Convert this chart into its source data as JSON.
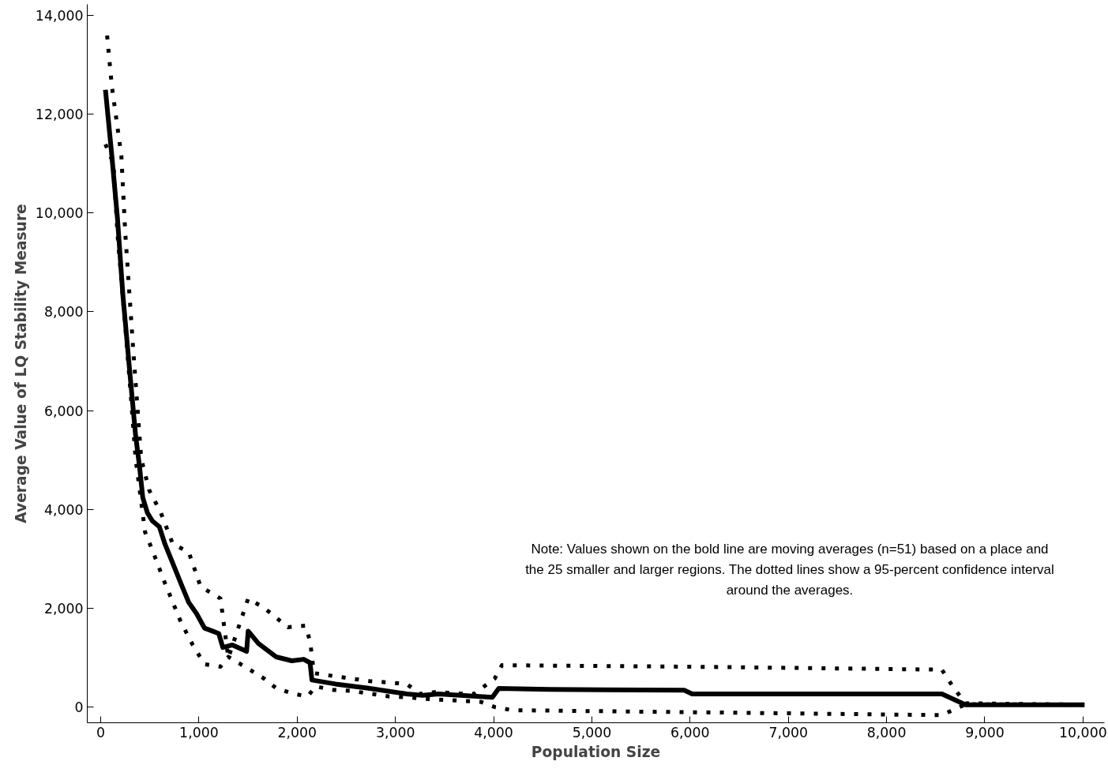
{
  "chart_data": {
    "type": "line",
    "xlabel": "Population Size",
    "ylabel": "Average Value of LQ Stability Measure",
    "annotations": [
      "Note: Values shown on the bold line are moving averages (n=51) based on a place and the 25 smaller and larger regions. The dotted lines show a 95-percent confidence interval around the averages."
    ],
    "xlim": [
      -137,
      10218
    ],
    "ylim": [
      -314,
      14220
    ],
    "xticks": [
      {
        "value": 0,
        "label": "0"
      },
      {
        "value": 1000,
        "label": "1,000"
      },
      {
        "value": 2000,
        "label": "2,000"
      },
      {
        "value": 3000,
        "label": "3,000"
      },
      {
        "value": 4000,
        "label": "4,000"
      },
      {
        "value": 5000,
        "label": "5,000"
      },
      {
        "value": 6000,
        "label": "6,000"
      },
      {
        "value": 7000,
        "label": "7,000"
      },
      {
        "value": 8000,
        "label": "8,000"
      },
      {
        "value": 9000,
        "label": "9,000"
      },
      {
        "value": 10000,
        "label": "10,000"
      }
    ],
    "yticks": [
      {
        "value": 0,
        "label": "0"
      },
      {
        "value": 2000,
        "label": "2,000"
      },
      {
        "value": 4000,
        "label": "4,000"
      },
      {
        "value": 6000,
        "label": "6,000"
      },
      {
        "value": 8000,
        "label": "8,000"
      },
      {
        "value": 10000,
        "label": "10,000"
      },
      {
        "value": 12000,
        "label": "12,000"
      },
      {
        "value": 14000,
        "label": "14,000"
      }
    ],
    "grid": false,
    "series": [
      {
        "color": "#000000",
        "line_style": "solid",
        "x": [
          48,
          113,
          170,
          226,
          290,
          355,
          395,
          428,
          476,
          525,
          597,
          654,
          734,
          815,
          896,
          977,
          1057,
          1138,
          1202,
          1243,
          1340,
          1485,
          1501,
          1606,
          1784,
          1945,
          2066,
          2131,
          2150,
          2389,
          2712,
          3115,
          3277,
          3438,
          3987,
          4052,
          4568,
          5940,
          6021,
          8563,
          8805,
          10016
        ],
        "values": [
          12490,
          11160,
          9900,
          8330,
          6910,
          5500,
          4870,
          4240,
          3930,
          3770,
          3650,
          3300,
          2910,
          2510,
          2120,
          1890,
          1600,
          1540,
          1490,
          1210,
          1260,
          1130,
          1540,
          1290,
          1020,
          940,
          970,
          900,
          550,
          470,
          390,
          270,
          240,
          270,
          200,
          380,
          360,
          345,
          270,
          270,
          50,
          50
        ]
      },
      {
        "color": "#000000",
        "line_style": "dotted",
        "x": [
          65,
          113,
          210,
          250,
          331,
          412,
          492,
          613,
          734,
          896,
          1017,
          1219,
          1299,
          1501,
          1663,
          1905,
          2082,
          2131,
          2171,
          2373,
          2550,
          2736,
          2930,
          3115,
          3253,
          3422,
          3616,
          3801,
          4011,
          4084,
          6000,
          8563,
          8684,
          8805,
          10016
        ],
        "values": [
          13590,
          12570,
          11160,
          9590,
          7230,
          5030,
          4400,
          3930,
          3300,
          3140,
          2440,
          2200,
          1000,
          2200,
          2010,
          1620,
          1650,
          1340,
          690,
          630,
          580,
          530,
          500,
          470,
          270,
          310,
          280,
          270,
          580,
          850,
          820,
          760,
          390,
          80,
          50
        ]
      },
      {
        "color": "#000000",
        "line_style": "dotted",
        "x": [
          48,
          129,
          170,
          250,
          307,
          355,
          452,
          533,
          654,
          815,
          937,
          1057,
          1219,
          1299,
          1525,
          1663,
          1784,
          1961,
          2107,
          2187,
          2373,
          2550,
          2930,
          3131,
          3301,
          3680,
          3866,
          4019,
          4189,
          6000,
          8563,
          8684,
          8805,
          10016
        ],
        "values": [
          11390,
          11000,
          9590,
          7700,
          6290,
          5030,
          3540,
          3140,
          2510,
          1730,
          1260,
          870,
          820,
          1020,
          750,
          580,
          390,
          270,
          220,
          420,
          350,
          330,
          220,
          200,
          170,
          130,
          110,
          0,
          -60,
          -100,
          -160,
          -50,
          60,
          50
        ]
      }
    ]
  }
}
